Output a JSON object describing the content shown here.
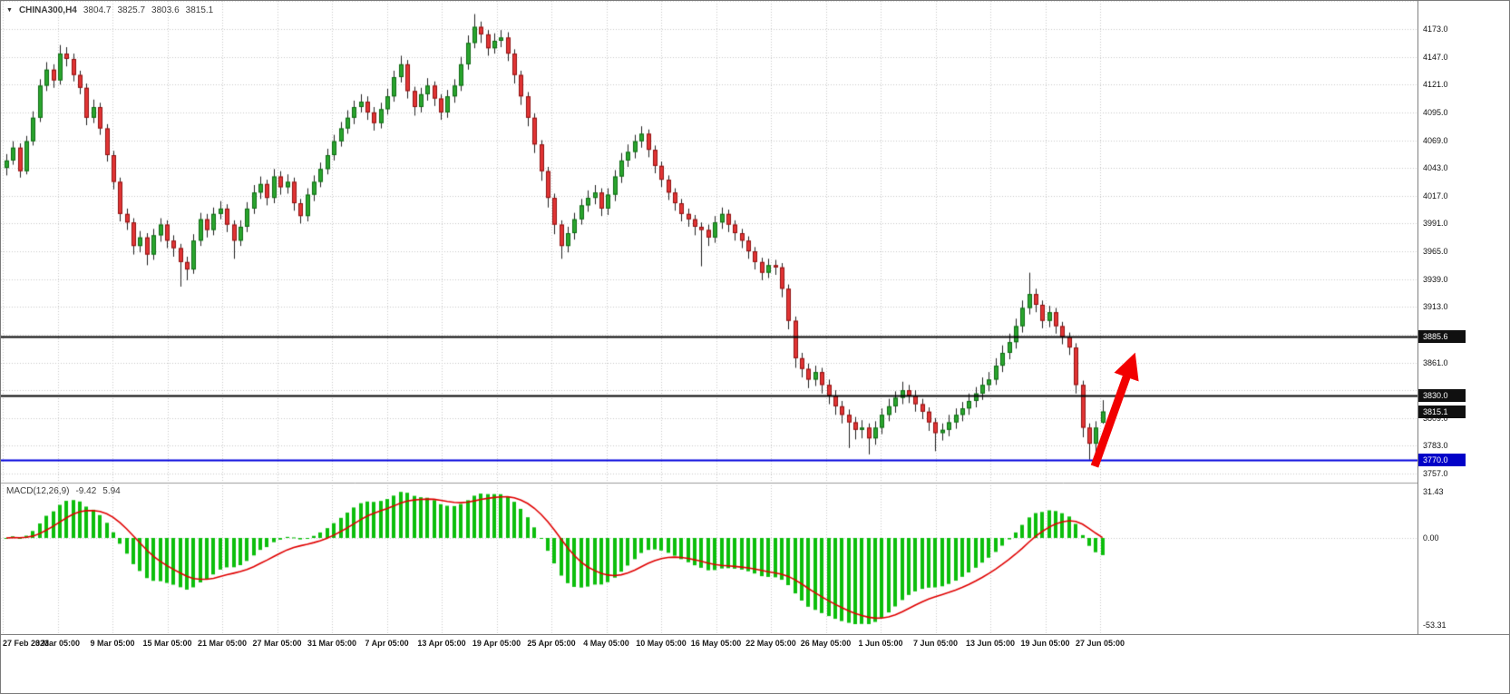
{
  "window": {
    "symbol": "CHINA300,H4",
    "ohlc": {
      "open": "3804.7",
      "high": "3825.7",
      "low": "3803.6",
      "close": "3815.1"
    }
  },
  "indicator": {
    "name": "MACD(12,26,9)",
    "value_main": "-9.42",
    "value_signal": "5.94",
    "scale_labels": [
      "31.43",
      "0.00",
      "-53.31"
    ]
  },
  "price_scale": {
    "ticks": [
      "4173.0",
      "4147.0",
      "4121.0",
      "4095.0",
      "4069.0",
      "4043.0",
      "4017.0",
      "3991.0",
      "3965.0",
      "3939.0",
      "3913.0",
      "3861.0",
      "3809.0",
      "3783.0",
      "3757.0"
    ],
    "badges": [
      {
        "name": "resistance-level-badge",
        "label": "3885.6",
        "price": 3885.6,
        "color": "#101010"
      },
      {
        "name": "mid-level-badge",
        "label": "3830.0",
        "price": 3830.0,
        "color": "#101010"
      },
      {
        "name": "current-price-badge",
        "label": "3815.1",
        "price": 3815.1,
        "color": "#101010"
      },
      {
        "name": "support-level-badge",
        "label": "3770.0",
        "price": 3770.0,
        "color": "#0202c8"
      }
    ]
  },
  "time_scale": {
    "labels": [
      "27 Feb 2023",
      "3 Mar 05:00",
      "9 Mar 05:00",
      "15 Mar 05:00",
      "21 Mar 05:00",
      "27 Mar 05:00",
      "31 Mar 05:00",
      "7 Apr 05:00",
      "13 Apr 05:00",
      "19 Apr 05:00",
      "25 Apr 05:00",
      "4 May 05:00",
      "10 May 05:00",
      "16 May 05:00",
      "22 May 05:00",
      "26 May 05:00",
      "1 Jun 05:00",
      "7 Jun 05:00",
      "13 Jun 05:00",
      "19 Jun 05:00",
      "27 Jun 05:00"
    ]
  },
  "annotation": {
    "type": "up-arrow",
    "color": "#f20000"
  },
  "colors": {
    "grid": "#c9c9c9",
    "wick": "#222222",
    "up_body": "#2aa52e",
    "up_border": "#0f6b14",
    "down_body": "#e23434",
    "down_border": "#8f1212",
    "macd_hist": "#0cbe0c",
    "macd_signal": "#e00000",
    "scale_text": "#111111"
  },
  "chart_data": [
    {
      "type": "candlestick",
      "title": "CHINA300,H4",
      "timeframe": "H4",
      "ylim": [
        3748,
        4200
      ],
      "y_tick_step": 26,
      "y_ticks": [
        4173,
        4147,
        4121,
        4095,
        4069,
        4043,
        4017,
        3991,
        3965,
        3939,
        3913,
        3887,
        3861,
        3835,
        3809,
        3783,
        3757
      ],
      "x_tick_labels": [
        "27 Feb 2023",
        "3 Mar 05:00",
        "9 Mar 05:00",
        "15 Mar 05:00",
        "21 Mar 05:00",
        "27 Mar 05:00",
        "31 Mar 05:00",
        "7 Apr 05:00",
        "13 Apr 05:00",
        "19 Apr 05:00",
        "25 Apr 05:00",
        "4 May 05:00",
        "10 May 05:00",
        "16 May 05:00",
        "22 May 05:00",
        "26 May 05:00",
        "1 Jun 05:00",
        "7 Jun 05:00",
        "13 Jun 05:00",
        "19 Jun 05:00",
        "27 Jun 05:00"
      ],
      "last_price": 3815.1,
      "levels": [
        {
          "price": 3885.6,
          "color": "#050505",
          "width": 2
        },
        {
          "price": 3830.0,
          "color": "#050505",
          "width": 2
        },
        {
          "price": 3770.0,
          "color": "#0000dd",
          "width": 2
        }
      ],
      "ohlc_order": "open,high,low,close",
      "ohlc": [
        [
          4043,
          4056,
          4036,
          4050
        ],
        [
          4050,
          4068,
          4046,
          4062
        ],
        [
          4062,
          4066,
          4034,
          4040
        ],
        [
          4040,
          4073,
          4037,
          4068
        ],
        [
          4068,
          4096,
          4064,
          4090
        ],
        [
          4090,
          4126,
          4086,
          4120
        ],
        [
          4120,
          4142,
          4115,
          4135
        ],
        [
          4135,
          4140,
          4118,
          4125
        ],
        [
          4125,
          4158,
          4121,
          4150
        ],
        [
          4150,
          4156,
          4138,
          4145
        ],
        [
          4145,
          4150,
          4124,
          4130
        ],
        [
          4130,
          4134,
          4112,
          4118
        ],
        [
          4118,
          4122,
          4083,
          4090
        ],
        [
          4090,
          4107,
          4085,
          4100
        ],
        [
          4100,
          4104,
          4074,
          4080
        ],
        [
          4080,
          4084,
          4049,
          4055
        ],
        [
          4055,
          4059,
          4023,
          4030
        ],
        [
          4030,
          4034,
          3993,
          4000
        ],
        [
          4000,
          4005,
          3985,
          3992
        ],
        [
          3992,
          3996,
          3962,
          3970
        ],
        [
          3970,
          3984,
          3964,
          3978
        ],
        [
          3978,
          3982,
          3952,
          3962
        ],
        [
          3962,
          3986,
          3957,
          3980
        ],
        [
          3980,
          3996,
          3974,
          3990
        ],
        [
          3990,
          3994,
          3968,
          3975
        ],
        [
          3975,
          3980,
          3960,
          3968
        ],
        [
          3968,
          3972,
          3932,
          3955
        ],
        [
          3955,
          3960,
          3938,
          3948
        ],
        [
          3948,
          3981,
          3944,
          3975
        ],
        [
          3975,
          4001,
          3970,
          3995
        ],
        [
          3995,
          4000,
          3978,
          3985
        ],
        [
          3985,
          4006,
          3980,
          4000
        ],
        [
          4000,
          4012,
          3995,
          4005
        ],
        [
          4005,
          4009,
          3983,
          3990
        ],
        [
          3990,
          3994,
          3958,
          3975
        ],
        [
          3975,
          3994,
          3970,
          3988
        ],
        [
          3988,
          4011,
          3983,
          4005
        ],
        [
          4005,
          4027,
          4000,
          4020
        ],
        [
          4020,
          4035,
          4014,
          4028
        ],
        [
          4028,
          4032,
          4008,
          4015
        ],
        [
          4015,
          4042,
          4010,
          4035
        ],
        [
          4035,
          4040,
          4018,
          4025
        ],
        [
          4025,
          4037,
          4019,
          4030
        ],
        [
          4030,
          4034,
          4003,
          4010
        ],
        [
          4010,
          4014,
          3991,
          3998
        ],
        [
          3998,
          4024,
          3993,
          4018
        ],
        [
          4018,
          4036,
          4012,
          4030
        ],
        [
          4030,
          4048,
          4025,
          4042
        ],
        [
          4042,
          4061,
          4037,
          4055
        ],
        [
          4055,
          4074,
          4050,
          4068
        ],
        [
          4068,
          4086,
          4063,
          4080
        ],
        [
          4080,
          4097,
          4075,
          4090
        ],
        [
          4090,
          4106,
          4084,
          4100
        ],
        [
          4100,
          4112,
          4095,
          4105
        ],
        [
          4105,
          4110,
          4088,
          4095
        ],
        [
          4095,
          4100,
          4078,
          4085
        ],
        [
          4085,
          4104,
          4080,
          4098
        ],
        [
          4098,
          4117,
          4093,
          4110
        ],
        [
          4110,
          4134,
          4105,
          4128
        ],
        [
          4128,
          4148,
          4123,
          4140
        ],
        [
          4140,
          4144,
          4108,
          4115
        ],
        [
          4115,
          4119,
          4092,
          4100
        ],
        [
          4100,
          4118,
          4095,
          4112
        ],
        [
          4112,
          4127,
          4106,
          4120
        ],
        [
          4120,
          4124,
          4101,
          4108
        ],
        [
          4108,
          4112,
          4088,
          4095
        ],
        [
          4095,
          4116,
          4090,
          4110
        ],
        [
          4110,
          4126,
          4104,
          4120
        ],
        [
          4120,
          4147,
          4115,
          4140
        ],
        [
          4140,
          4167,
          4135,
          4160
        ],
        [
          4160,
          4187,
          4155,
          4175
        ],
        [
          4175,
          4180,
          4160,
          4168
        ],
        [
          4168,
          4172,
          4148,
          4155
        ],
        [
          4155,
          4169,
          4150,
          4162
        ],
        [
          4162,
          4172,
          4156,
          4165
        ],
        [
          4165,
          4170,
          4143,
          4150
        ],
        [
          4150,
          4154,
          4122,
          4130
        ],
        [
          4130,
          4134,
          4102,
          4110
        ],
        [
          4110,
          4114,
          4082,
          4090
        ],
        [
          4090,
          4094,
          4057,
          4065
        ],
        [
          4065,
          4069,
          4031,
          4040
        ],
        [
          4040,
          4044,
          4006,
          4015
        ],
        [
          4015,
          4019,
          3981,
          3990
        ],
        [
          3990,
          3994,
          3958,
          3970
        ],
        [
          3970,
          3988,
          3964,
          3982
        ],
        [
          3982,
          4001,
          3976,
          3995
        ],
        [
          3995,
          4014,
          3990,
          4008
        ],
        [
          4008,
          4022,
          4002,
          4015
        ],
        [
          4015,
          4027,
          4009,
          4020
        ],
        [
          4020,
          4024,
          3998,
          4005
        ],
        [
          4005,
          4024,
          3999,
          4018
        ],
        [
          4018,
          4041,
          4012,
          4035
        ],
        [
          4035,
          4057,
          4029,
          4050
        ],
        [
          4050,
          4065,
          4044,
          4058
        ],
        [
          4058,
          4074,
          4052,
          4068
        ],
        [
          4068,
          4082,
          4062,
          4075
        ],
        [
          4075,
          4079,
          4053,
          4060
        ],
        [
          4060,
          4064,
          4038,
          4045
        ],
        [
          4045,
          4049,
          4025,
          4032
        ],
        [
          4032,
          4036,
          4013,
          4020
        ],
        [
          4020,
          4024,
          4003,
          4010
        ],
        [
          4010,
          4014,
          3993,
          4000
        ],
        [
          4000,
          4005,
          3988,
          3995
        ],
        [
          3995,
          3999,
          3980,
          3988
        ],
        [
          3988,
          3992,
          3951,
          3985
        ],
        [
          3985,
          3990,
          3970,
          3978
        ],
        [
          3978,
          3998,
          3973,
          3992
        ],
        [
          3992,
          4006,
          3986,
          4000
        ],
        [
          4000,
          4004,
          3983,
          3990
        ],
        [
          3990,
          3994,
          3975,
          3982
        ],
        [
          3982,
          3986,
          3968,
          3975
        ],
        [
          3975,
          3979,
          3958,
          3965
        ],
        [
          3965,
          3969,
          3948,
          3955
        ],
        [
          3955,
          3959,
          3938,
          3945
        ],
        [
          3945,
          3958,
          3940,
          3952
        ],
        [
          3952,
          3957,
          3943,
          3950
        ],
        [
          3950,
          3954,
          3922,
          3930
        ],
        [
          3930,
          3934,
          3892,
          3900
        ],
        [
          3900,
          3904,
          3856,
          3865
        ],
        [
          3865,
          3870,
          3847,
          3855
        ],
        [
          3855,
          3860,
          3837,
          3845
        ],
        [
          3845,
          3858,
          3839,
          3852
        ],
        [
          3852,
          3856,
          3832,
          3840
        ],
        [
          3840,
          3845,
          3822,
          3830
        ],
        [
          3830,
          3835,
          3812,
          3820
        ],
        [
          3820,
          3825,
          3804,
          3812
        ],
        [
          3812,
          3817,
          3781,
          3805
        ],
        [
          3805,
          3810,
          3789,
          3798
        ],
        [
          3798,
          3807,
          3790,
          3800
        ],
        [
          3800,
          3804,
          3775,
          3790
        ],
        [
          3790,
          3806,
          3784,
          3800
        ],
        [
          3800,
          3818,
          3794,
          3812
        ],
        [
          3812,
          3827,
          3806,
          3820
        ],
        [
          3820,
          3834,
          3814,
          3828
        ],
        [
          3828,
          3843,
          3822,
          3835
        ],
        [
          3835,
          3840,
          3823,
          3830
        ],
        [
          3830,
          3835,
          3815,
          3822
        ],
        [
          3822,
          3827,
          3808,
          3815
        ],
        [
          3815,
          3819,
          3797,
          3805
        ],
        [
          3805,
          3809,
          3778,
          3795
        ],
        [
          3795,
          3804,
          3788,
          3798
        ],
        [
          3798,
          3812,
          3792,
          3805
        ],
        [
          3805,
          3818,
          3799,
          3812
        ],
        [
          3812,
          3824,
          3806,
          3818
        ],
        [
          3818,
          3832,
          3812,
          3825
        ],
        [
          3825,
          3838,
          3819,
          3832
        ],
        [
          3832,
          3847,
          3826,
          3840
        ],
        [
          3840,
          3852,
          3834,
          3845
        ],
        [
          3845,
          3865,
          3840,
          3858
        ],
        [
          3858,
          3877,
          3852,
          3870
        ],
        [
          3870,
          3888,
          3864,
          3880
        ],
        [
          3880,
          3902,
          3874,
          3895
        ],
        [
          3895,
          3919,
          3889,
          3912
        ],
        [
          3912,
          3945,
          3906,
          3925
        ],
        [
          3925,
          3930,
          3908,
          3915
        ],
        [
          3915,
          3919,
          3893,
          3900
        ],
        [
          3900,
          3914,
          3894,
          3908
        ],
        [
          3908,
          3912,
          3888,
          3895
        ],
        [
          3895,
          3899,
          3878,
          3885
        ],
        [
          3885,
          3889,
          3868,
          3875
        ],
        [
          3875,
          3879,
          3832,
          3840
        ],
        [
          3840,
          3844,
          3791,
          3800
        ],
        [
          3800,
          3804,
          3770,
          3785
        ],
        [
          3785,
          3806,
          3772,
          3800
        ],
        [
          3804.7,
          3825.7,
          3803.6,
          3815.1
        ]
      ]
    },
    {
      "type": "bar",
      "name": "MACD(12,26,9)",
      "description": "MACD main line as green histogram (EMA12-EMA26 of the ohlc closes above), red signal line = EMA9 of MACD",
      "current_values": {
        "macd": -9.42,
        "signal": 5.94
      },
      "ylim": [
        -53.31,
        31.43
      ],
      "zero_line": 0,
      "y_tick_labels": [
        "31.43",
        "0.00",
        "-53.31"
      ]
    }
  ]
}
